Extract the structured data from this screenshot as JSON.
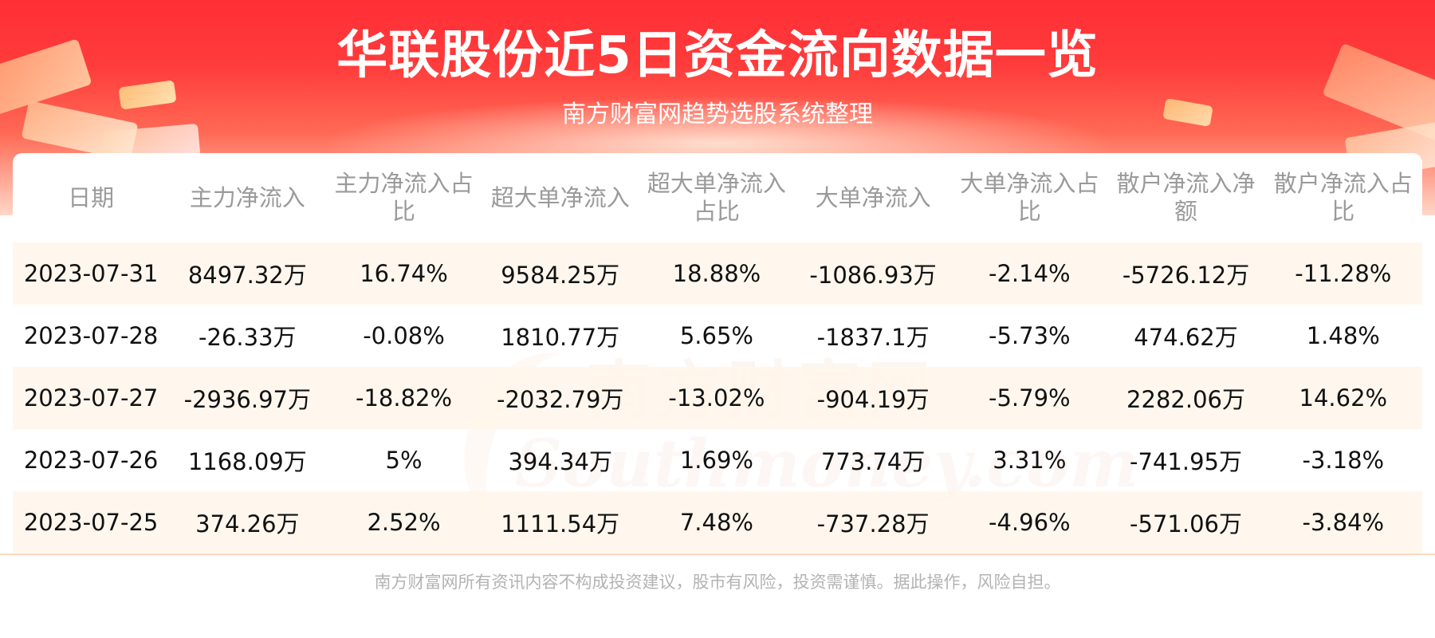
{
  "header": {
    "title": "华联股份近5日资金流向数据一览",
    "subtitle": "南方财富网趋势选股系统整理"
  },
  "table": {
    "columns": [
      "日期",
      "主力净流入",
      "主力净流入占比",
      "超大单净流入",
      "超大单净流入占比",
      "大单净流入",
      "大单净流入占比",
      "散户净流入净额",
      "散户净流入占比"
    ],
    "rows": [
      [
        "2023-07-31",
        "8497.32万",
        "16.74%",
        "9584.25万",
        "18.88%",
        "-1086.93万",
        "-2.14%",
        "-5726.12万",
        "-11.28%"
      ],
      [
        "2023-07-28",
        "-26.33万",
        "-0.08%",
        "1810.77万",
        "5.65%",
        "-1837.1万",
        "-5.73%",
        "474.62万",
        "1.48%"
      ],
      [
        "2023-07-27",
        "-2936.97万",
        "-18.82%",
        "-2032.79万",
        "-13.02%",
        "-904.19万",
        "-5.79%",
        "2282.06万",
        "14.62%"
      ],
      [
        "2023-07-26",
        "1168.09万",
        "5%",
        "394.34万",
        "1.69%",
        "773.74万",
        "3.31%",
        "-741.95万",
        "-3.18%"
      ],
      [
        "2023-07-25",
        "374.26万",
        "2.52%",
        "1111.54万",
        "7.48%",
        "-737.28万",
        "-4.96%",
        "-571.06万",
        "-3.84%"
      ]
    ]
  },
  "watermark": {
    "cn": "南方财富网",
    "en": "Southmoney.com"
  },
  "footer": {
    "disclaimer": "南方财富网所有资讯内容不构成投资建议，股市有风险，投资需谨慎。据此操作，风险自担。"
  }
}
